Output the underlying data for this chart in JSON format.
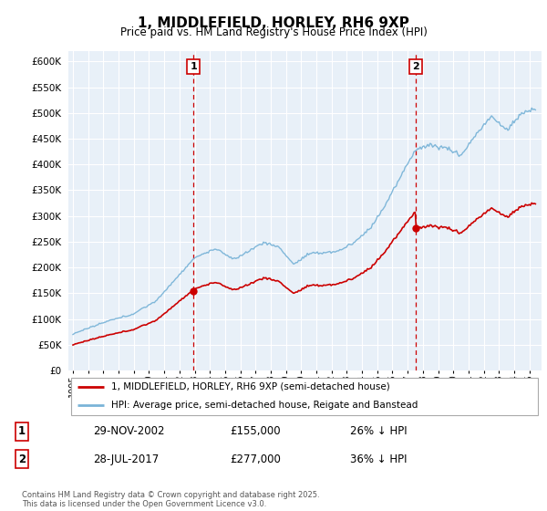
{
  "title": "1, MIDDLEFIELD, HORLEY, RH6 9XP",
  "subtitle": "Price paid vs. HM Land Registry's House Price Index (HPI)",
  "sale1_date": 2002.92,
  "sale1_price": 155000,
  "sale1_label": "1",
  "sale1_display": "29-NOV-2002",
  "sale1_pct": "26% ↓ HPI",
  "sale2_date": 2017.55,
  "sale2_price": 277000,
  "sale2_label": "2",
  "sale2_display": "28-JUL-2017",
  "sale2_pct": "36% ↓ HPI",
  "legend_red": "1, MIDDLEFIELD, HORLEY, RH6 9XP (semi-detached house)",
  "legend_blue": "HPI: Average price, semi-detached house, Reigate and Banstead",
  "footer": "Contains HM Land Registry data © Crown copyright and database right 2025.\nThis data is licensed under the Open Government Licence v3.0.",
  "ylim": [
    0,
    620000
  ],
  "yticks": [
    0,
    50000,
    100000,
    150000,
    200000,
    250000,
    300000,
    350000,
    400000,
    450000,
    500000,
    550000,
    600000
  ],
  "hpi_color": "#7ab4d8",
  "red_color": "#cc0000",
  "vline_color": "#cc0000",
  "bg_color": "#e8f0f8",
  "grid_color": "#ffffff",
  "n_points": 370
}
